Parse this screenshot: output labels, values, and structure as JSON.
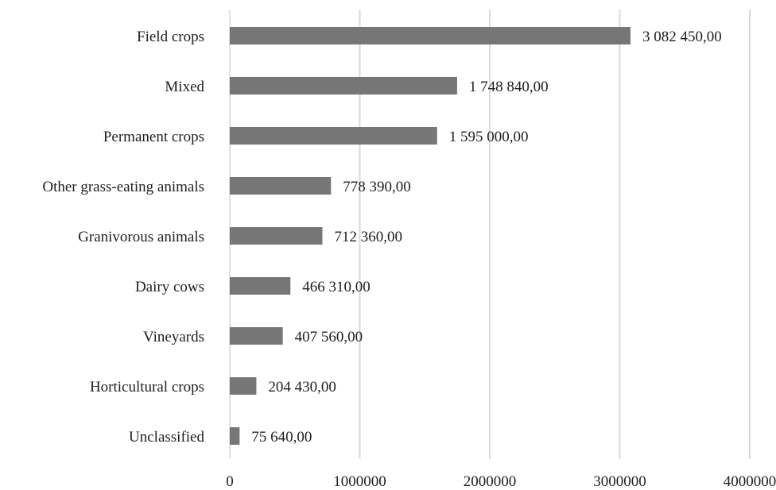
{
  "chart_data": {
    "type": "bar",
    "orientation": "horizontal",
    "categories": [
      "Field crops",
      "Mixed",
      "Permanent crops",
      "Other grass-eating animals",
      "Granivorous animals",
      "Dairy cows",
      "Vineyards",
      "Horticultural crops",
      "Unclassified"
    ],
    "values": [
      3082450,
      1748840,
      1595000,
      778390,
      712360,
      466310,
      407560,
      204430,
      75640
    ],
    "value_labels": [
      "3 082 450,00",
      "1 748 840,00",
      "1 595 000,00",
      "778 390,00",
      "712 360,00",
      "466 310,00",
      "407 560,00",
      "204 430,00",
      "75 640,00"
    ],
    "xlim": [
      0,
      4000000
    ],
    "xticks": [
      0,
      1000000,
      2000000,
      3000000,
      4000000
    ],
    "xtick_labels": [
      "0",
      "1000000",
      "2000000",
      "3000000",
      "4000000"
    ],
    "grid": true,
    "bar_color": "#767676",
    "grid_color": "#d9d9d9"
  }
}
